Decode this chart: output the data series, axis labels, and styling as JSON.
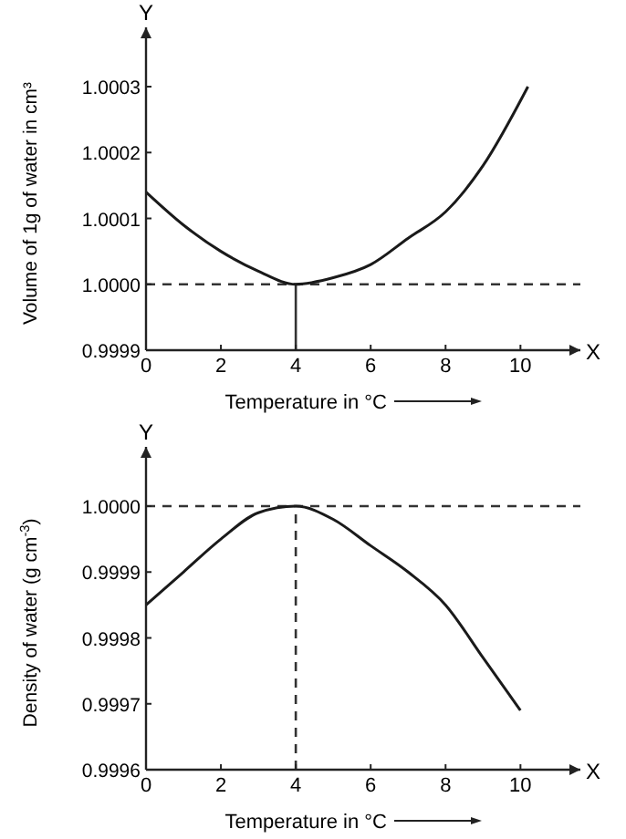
{
  "chart_data": [
    {
      "type": "line",
      "xlabel": "Temperature in °C",
      "ylabel": "Volume of 1g of water in cm³",
      "annotations": [
        "Y",
        "X"
      ],
      "xlim": [
        0,
        11.6
      ],
      "ylim": [
        0.9999,
        1.00039
      ],
      "xticks": [
        0,
        2,
        4,
        6,
        8,
        10
      ],
      "yticks": [
        {
          "value": 0.9999,
          "label": "0.9999"
        },
        {
          "value": 1.0,
          "label": "1.0000"
        },
        {
          "value": 1.0001,
          "label": "1.0001"
        },
        {
          "value": 1.0002,
          "label": "1.0002"
        },
        {
          "value": 1.0003,
          "label": "1.0003"
        }
      ],
      "series": [
        {
          "color": "#1a1a1a",
          "x": [
            0,
            1,
            2,
            3,
            4,
            5,
            6,
            7,
            8,
            9,
            10.2
          ],
          "values": [
            1.00014,
            1.00009,
            1.00005,
            1.00002,
            1.0,
            1.00001,
            1.00003,
            1.00007,
            1.00011,
            1.00018,
            1.0003
          ]
        }
      ],
      "ref_lines": [
        {
          "axis": "y",
          "value": 1.0,
          "line_style": "dashed"
        },
        {
          "axis": "x",
          "value": 4,
          "line_style": "solid"
        }
      ],
      "grid": false
    },
    {
      "type": "line",
      "xlabel": "Temperature in °C",
      "ylabel": "Density of water (g cm$^{-3}$)",
      "annotations": [
        "Y",
        "X"
      ],
      "xlim": [
        0,
        11.6
      ],
      "ylim": [
        0.9996,
        1.00009
      ],
      "xticks": [
        0,
        2,
        4,
        6,
        8,
        10
      ],
      "yticks": [
        {
          "value": 0.9996,
          "label": "0.9996"
        },
        {
          "value": 0.9997,
          "label": "0.9997"
        },
        {
          "value": 0.9998,
          "label": "0.9998"
        },
        {
          "value": 0.9999,
          "label": "0.9999"
        },
        {
          "value": 1.0,
          "label": "1.0000"
        }
      ],
      "series": [
        {
          "color": "#1a1a1a",
          "x": [
            0,
            1,
            2,
            3,
            4,
            5,
            6,
            7,
            8,
            9,
            10
          ],
          "values": [
            0.99985,
            0.9999,
            0.99995,
            0.99999,
            1.0,
            0.99998,
            0.99994,
            0.9999,
            0.99985,
            0.99977,
            0.99969
          ]
        }
      ],
      "ref_lines": [
        {
          "axis": "y",
          "value": 1.0,
          "line_style": "dashed"
        },
        {
          "axis": "x",
          "value": 4,
          "line_style": "dashed"
        }
      ],
      "grid": false
    }
  ]
}
